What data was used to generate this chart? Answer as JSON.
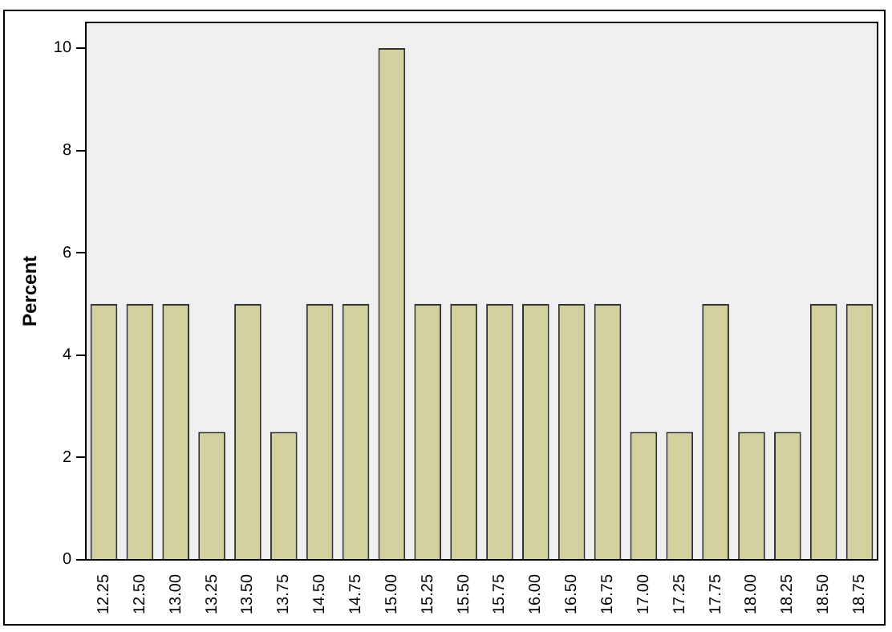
{
  "chart_data": {
    "type": "bar",
    "ylabel": "Percent",
    "categories": [
      "12.25",
      "12.50",
      "13.00",
      "13.25",
      "13.50",
      "13.75",
      "14.50",
      "14.75",
      "15.00",
      "15.25",
      "15.50",
      "15.75",
      "16.00",
      "16.50",
      "16.75",
      "17.00",
      "17.25",
      "17.75",
      "18.00",
      "18.25",
      "18.50",
      "18.75"
    ],
    "values": [
      5,
      5,
      5,
      2.5,
      5,
      2.5,
      5,
      5,
      10,
      5,
      5,
      5,
      5,
      5,
      5,
      2.5,
      2.5,
      5,
      2.5,
      2.5,
      5,
      5
    ],
    "color": "#d2d09c",
    "ylim": [
      0,
      10.5
    ],
    "yticks": [
      0,
      2,
      4,
      6,
      8,
      10
    ],
    "grid": false,
    "legend": false
  }
}
